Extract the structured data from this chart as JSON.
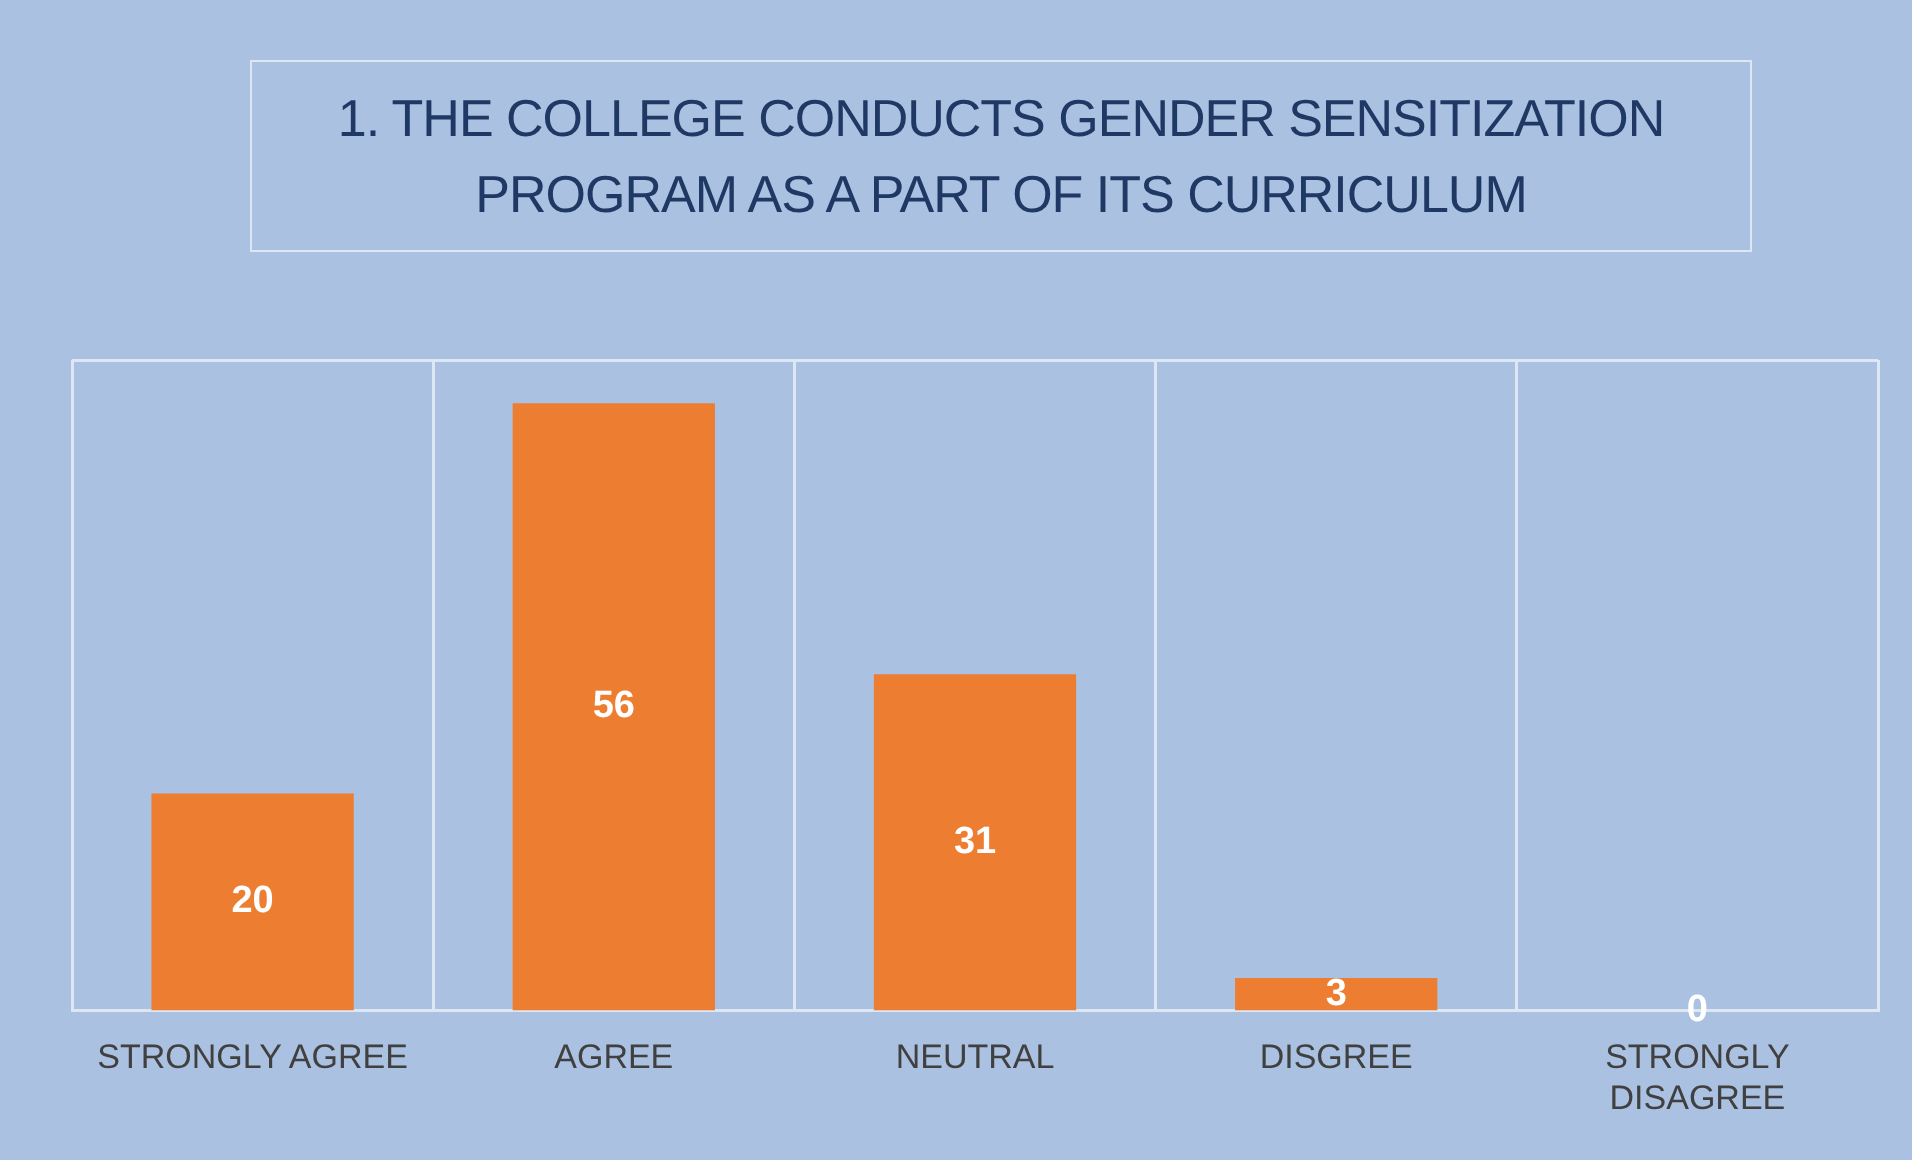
{
  "chart_data": {
    "type": "bar",
    "title": "1. THE COLLEGE CONDUCTS GENDER SENSITIZATION PROGRAM AS A PART OF ITS CURRICULUM",
    "categories": [
      "STRONGLY AGREE",
      "AGREE",
      "NEUTRAL",
      "DISGREE",
      "STRONGLY DISAGREE"
    ],
    "values": [
      20,
      56,
      31,
      3,
      0
    ],
    "color": "#ed7d31",
    "data_labels": true,
    "grid": "x",
    "legend": false
  }
}
